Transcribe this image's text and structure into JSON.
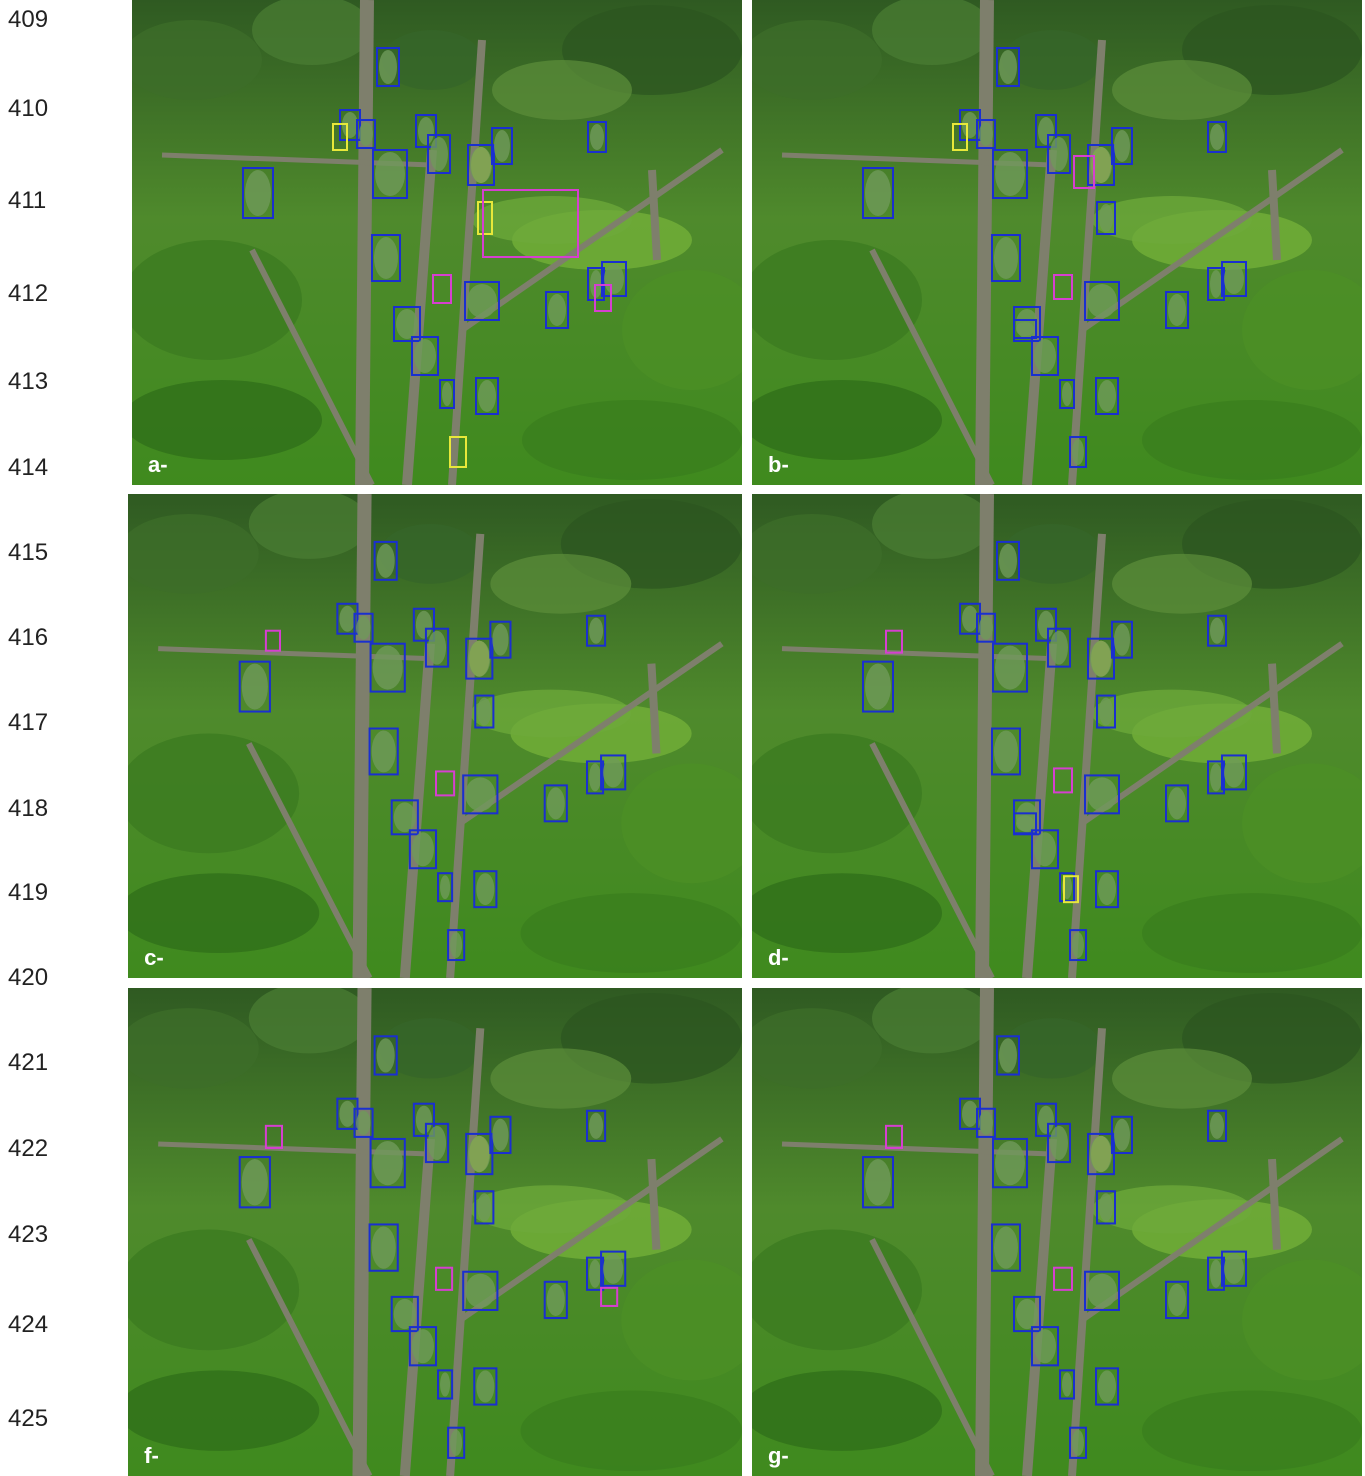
{
  "line_numbers": [
    "409",
    "410",
    "411",
    "412",
    "413",
    "414",
    "415",
    "416",
    "417",
    "418",
    "419",
    "420",
    "421",
    "422",
    "423",
    "424",
    "425"
  ],
  "panels": [
    {
      "label": "a-"
    },
    {
      "label": "b-"
    },
    {
      "label": "c-"
    },
    {
      "label": "d-"
    },
    {
      "label": "f-"
    },
    {
      "label": "g-"
    }
  ]
}
